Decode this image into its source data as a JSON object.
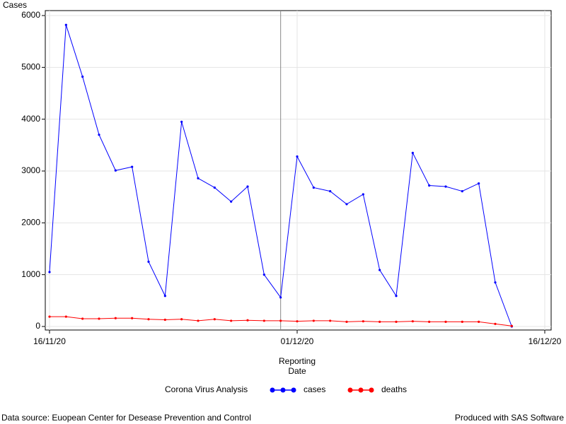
{
  "chart_data": {
    "type": "line",
    "ylabel": "Cases",
    "xlabel": [
      "Reporting",
      "Date"
    ],
    "legend_title": "Corona Virus Analysis",
    "footnote_left": "Data source: Euopean Center for Desease Prevention and Control",
    "footnote_right": "Produced with SAS Software",
    "x": [
      "2020-11-16",
      "2020-11-17",
      "2020-11-18",
      "2020-11-19",
      "2020-11-20",
      "2020-11-21",
      "2020-11-22",
      "2020-11-23",
      "2020-11-24",
      "2020-11-25",
      "2020-11-26",
      "2020-11-27",
      "2020-11-28",
      "2020-11-29",
      "2020-11-30",
      "2020-12-01",
      "2020-12-02",
      "2020-12-03",
      "2020-12-04",
      "2020-12-05",
      "2020-12-06",
      "2020-12-07",
      "2020-12-08",
      "2020-12-09",
      "2020-12-10",
      "2020-12-11",
      "2020-12-12",
      "2020-12-13",
      "2020-12-14"
    ],
    "series": [
      {
        "name": "cases",
        "color": "#0000ff",
        "values": [
          1050,
          5820,
          4820,
          3700,
          3010,
          3080,
          1250,
          590,
          3950,
          2860,
          2680,
          2410,
          2700,
          1000,
          560,
          3280,
          2680,
          2610,
          2360,
          2550,
          1090,
          590,
          3350,
          2720,
          2700,
          2610,
          2760,
          850,
          0
        ]
      },
      {
        "name": "deaths",
        "color": "#ff0000",
        "values": [
          190,
          190,
          150,
          150,
          160,
          160,
          140,
          130,
          140,
          110,
          140,
          110,
          120,
          110,
          110,
          100,
          110,
          110,
          90,
          100,
          90,
          90,
          100,
          90,
          90,
          90,
          90,
          50,
          10
        ]
      }
    ],
    "xlim": [
      "2020-11-16",
      "2020-12-16"
    ],
    "xticks": [
      {
        "value": "2020-11-16",
        "label": "16/11/20"
      },
      {
        "value": "2020-12-01",
        "label": "01/12/20"
      },
      {
        "value": "2020-12-16",
        "label": "16/12/20"
      }
    ],
    "ylim": [
      0,
      6000
    ],
    "yticks": [
      0,
      1000,
      2000,
      3000,
      4000,
      5000,
      6000
    ],
    "grid": true,
    "reference_line": "2020-11-30"
  }
}
